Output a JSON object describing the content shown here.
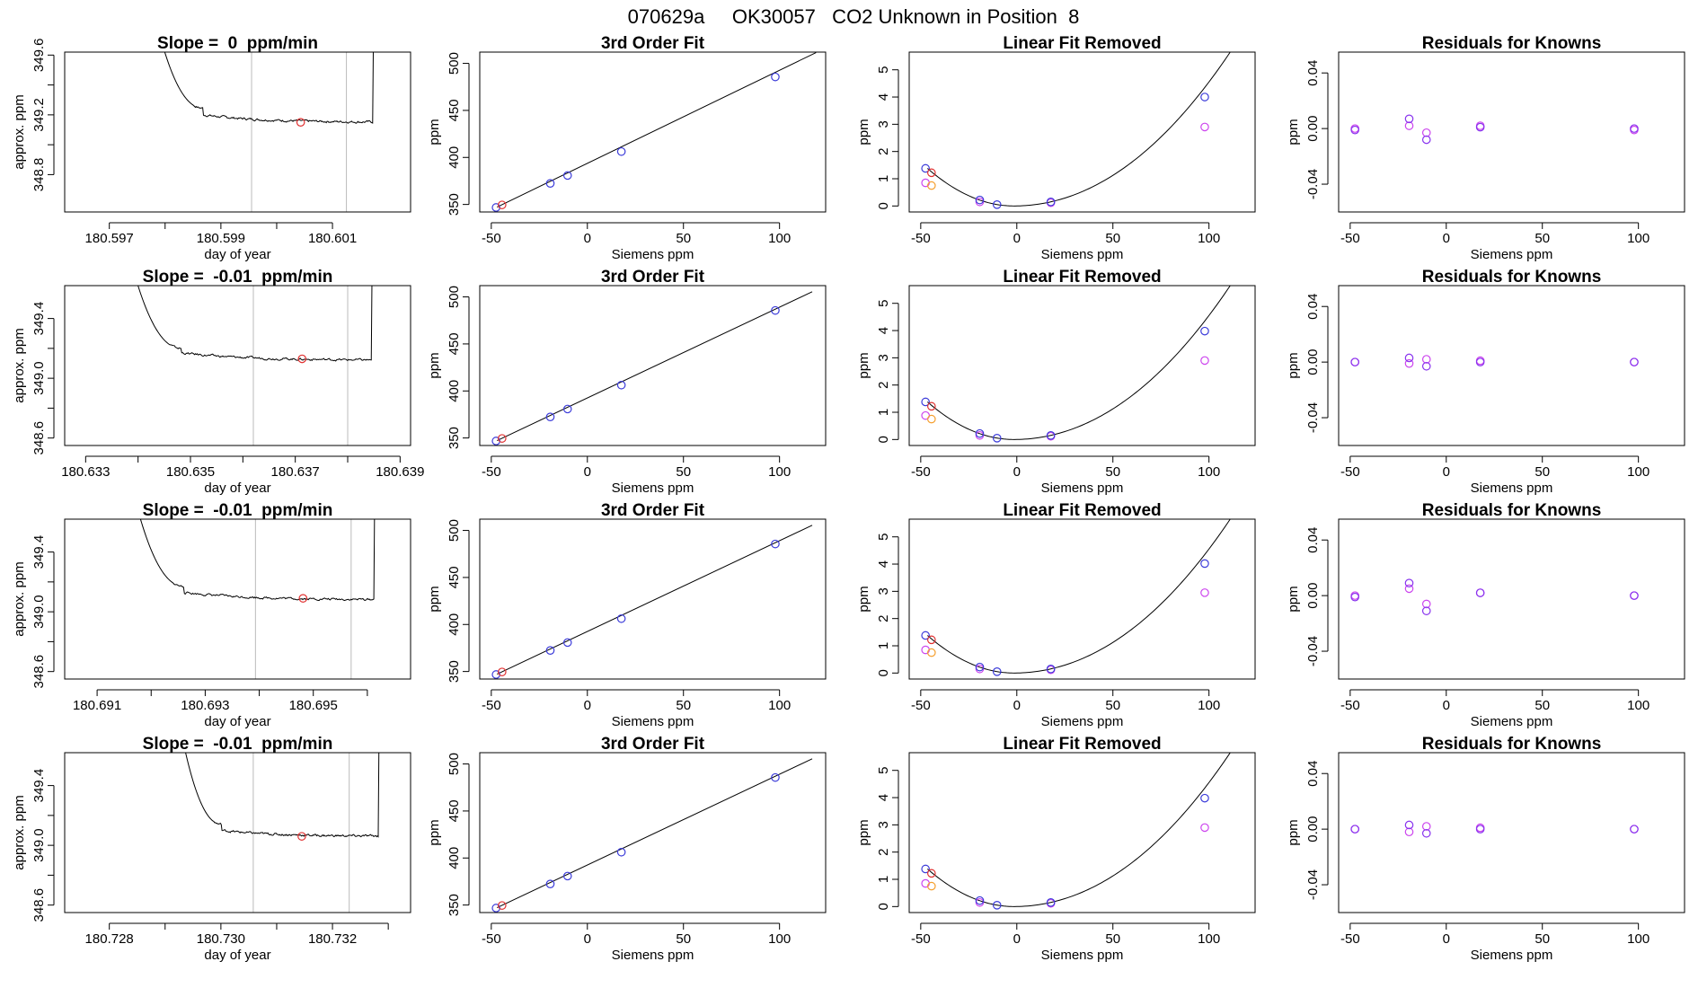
{
  "suptitle": "070629a     OK30057   CO2 Unknown in Position  8",
  "colors": {
    "known": "#3b3bd9",
    "unknown": "#e03030",
    "orange": "#f5a030",
    "magenta": "#cc44ee",
    "purple": "#8833ee",
    "vline": "#bbbbbb",
    "line": "#000000"
  },
  "chart_data": [
    {
      "type": "line",
      "panel": "trace",
      "row": 1,
      "title": "Slope =  0  ppm/min",
      "xlabel": "day of year",
      "ylabel": "approx. ppm",
      "xlim": [
        180.5962,
        180.6024
      ],
      "ylim": [
        348.55,
        349.62
      ],
      "xticks": [
        180.597,
        180.599,
        180.601
      ],
      "xtick_labels": [
        "180.597",
        "180.599",
        "180.601"
      ],
      "xticks_minor": [
        180.598,
        180.6
      ],
      "yticks": [
        348.8,
        349.2,
        349.6
      ],
      "ytick_labels": [
        "348.8",
        "349.2",
        "349.6"
      ],
      "yticks_minor": [
        349.0,
        349.4
      ],
      "vlines": [
        180.59955,
        180.60125
      ],
      "marker": [
        180.60043,
        349.15
      ],
      "trace": {
        "x0": 180.59793,
        "x1": 180.60172,
        "level": 349.15,
        "start": 349.7,
        "drop": 349.245,
        "plateau": 349.2
      }
    },
    {
      "type": "line",
      "panel": "trace",
      "row": 2,
      "title": "Slope =  -0.01  ppm/min",
      "xlabel": "day of year",
      "ylabel": "approx. ppm",
      "xlim": [
        180.6326,
        180.6392
      ],
      "ylim": [
        348.55,
        349.62
      ],
      "xticks": [
        180.633,
        180.635,
        180.637,
        180.639
      ],
      "xtick_labels": [
        "180.633",
        "180.635",
        "180.637",
        "180.639"
      ],
      "xticks_minor": [
        180.634,
        180.636,
        180.638
      ],
      "yticks": [
        348.6,
        349.0,
        349.4
      ],
      "ytick_labels": [
        "348.6",
        "349.0",
        "349.4"
      ],
      "yticks_minor": [
        348.8,
        349.2
      ],
      "vlines": [
        180.6362,
        180.638
      ],
      "marker": [
        180.63713,
        349.13
      ],
      "trace": {
        "x0": 180.63393,
        "x1": 180.63845,
        "level": 349.12,
        "start": 349.7,
        "drop": 349.2,
        "plateau": 349.17
      }
    },
    {
      "type": "line",
      "panel": "trace",
      "row": 3,
      "title": "Slope =  -0.01  ppm/min",
      "xlabel": "day of year",
      "ylabel": "approx. ppm",
      "xlim": [
        180.6904,
        180.6968
      ],
      "ylim": [
        348.55,
        349.62
      ],
      "xticks": [
        180.691,
        180.693,
        180.695
      ],
      "xtick_labels": [
        "180.691",
        "180.693",
        "180.695"
      ],
      "xticks_minor": [
        180.692,
        180.694,
        180.696
      ],
      "yticks": [
        348.6,
        349.0,
        349.4
      ],
      "ytick_labels": [
        "348.6",
        "349.0",
        "349.4"
      ],
      "yticks_minor": [
        348.8,
        349.2
      ],
      "vlines": [
        180.69393,
        180.6957
      ],
      "marker": [
        180.69481,
        349.09
      ],
      "trace": {
        "x0": 180.69174,
        "x1": 180.69612,
        "level": 349.08,
        "start": 349.7,
        "drop": 349.17,
        "plateau": 349.13
      }
    },
    {
      "type": "line",
      "panel": "trace",
      "row": 4,
      "title": "Slope =  -0.01  ppm/min",
      "xlabel": "day of year",
      "ylabel": "approx. ppm",
      "xlim": [
        180.7272,
        180.7334
      ],
      "ylim": [
        348.55,
        349.62
      ],
      "xticks": [
        180.728,
        180.73,
        180.732
      ],
      "xtick_labels": [
        "180.728",
        "180.730",
        "180.732"
      ],
      "xticks_minor": [
        180.729,
        180.731,
        180.733
      ],
      "yticks": [
        348.6,
        349.0,
        349.4
      ],
      "ytick_labels": [
        "348.6",
        "349.0",
        "349.4"
      ],
      "yticks_minor": [
        348.8,
        349.2
      ],
      "vlines": [
        180.73058,
        180.7323
      ],
      "marker": [
        180.73145,
        349.06
      ],
      "trace": {
        "x0": 180.72932,
        "x1": 180.73282,
        "level": 349.06,
        "start": 349.7,
        "drop": 349.14,
        "plateau": 349.1
      }
    },
    {
      "type": "scatter",
      "panel": "fit3",
      "row": 1,
      "title": "3rd Order Fit",
      "xlabel": "Siemens ppm",
      "ylabel": "ppm",
      "xlim": [
        -56,
        124
      ],
      "ylim": [
        342,
        512
      ],
      "xticks": [
        -50,
        0,
        50,
        100
      ],
      "xtick_labels": [
        "-50",
        "0",
        "50",
        "100"
      ],
      "yticks": [
        350,
        400,
        450,
        500
      ],
      "ytick_labels": [
        "350",
        "400",
        "450",
        "500"
      ],
      "knowns": [
        [
          -47.5,
          346.8
        ],
        [
          -19.3,
          372.4
        ],
        [
          -10.3,
          380.8
        ],
        [
          17.7,
          406.2
        ],
        [
          97.8,
          485.6
        ]
      ],
      "unknown": [
        -44.4,
        349.5
      ],
      "line": [
        [
          -47,
          347.2
        ],
        [
          119,
          511.5
        ]
      ]
    },
    {
      "type": "scatter",
      "panel": "fit3",
      "row": 2,
      "title": "3rd Order Fit",
      "xlabel": "Siemens ppm",
      "ylabel": "ppm",
      "xlim": [
        -56,
        124
      ],
      "ylim": [
        342,
        512
      ],
      "xticks": [
        -50,
        0,
        50,
        100
      ],
      "xtick_labels": [
        "-50",
        "0",
        "50",
        "100"
      ],
      "yticks": [
        350,
        400,
        450,
        500
      ],
      "ytick_labels": [
        "350",
        "400",
        "450",
        "500"
      ],
      "knowns": [
        [
          -47.5,
          346.8
        ],
        [
          -19.3,
          372.4
        ],
        [
          -10.3,
          380.8
        ],
        [
          17.7,
          406.2
        ],
        [
          97.8,
          485.6
        ]
      ],
      "unknown": [
        -44.4,
        349.5
      ],
      "line": [
        [
          -47,
          347.2
        ],
        [
          117,
          505.5
        ]
      ]
    },
    {
      "type": "scatter",
      "panel": "fit3",
      "row": 3,
      "title": "3rd Order Fit",
      "xlabel": "Siemens ppm",
      "ylabel": "ppm",
      "xlim": [
        -56,
        124
      ],
      "ylim": [
        342,
        512
      ],
      "xticks": [
        -50,
        0,
        50,
        100
      ],
      "xtick_labels": [
        "-50",
        "0",
        "50",
        "100"
      ],
      "yticks": [
        350,
        400,
        450,
        500
      ],
      "ytick_labels": [
        "350",
        "400",
        "450",
        "500"
      ],
      "knowns": [
        [
          -47.5,
          346.8
        ],
        [
          -19.3,
          372.4
        ],
        [
          -10.3,
          380.8
        ],
        [
          17.7,
          406.2
        ],
        [
          97.8,
          485.6
        ]
      ],
      "unknown": [
        -44.4,
        349.5
      ],
      "line": [
        [
          -47,
          347.2
        ],
        [
          117,
          505.5
        ]
      ]
    },
    {
      "type": "scatter",
      "panel": "fit3",
      "row": 4,
      "title": "3rd Order Fit",
      "xlabel": "Siemens ppm",
      "ylabel": "ppm",
      "xlim": [
        -56,
        124
      ],
      "ylim": [
        342,
        512
      ],
      "xticks": [
        -50,
        0,
        50,
        100
      ],
      "xtick_labels": [
        "-50",
        "0",
        "50",
        "100"
      ],
      "yticks": [
        350,
        400,
        450,
        500
      ],
      "ytick_labels": [
        "350",
        "400",
        "450",
        "500"
      ],
      "knowns": [
        [
          -47.5,
          346.8
        ],
        [
          -19.3,
          372.4
        ],
        [
          -10.3,
          380.8
        ],
        [
          17.7,
          406.2
        ],
        [
          97.8,
          485.6
        ]
      ],
      "unknown": [
        -44.4,
        349.5
      ],
      "line": [
        [
          -47,
          347.2
        ],
        [
          117,
          505.5
        ]
      ]
    },
    {
      "type": "scatter",
      "panel": "linrem",
      "row": 1,
      "title": "Linear Fit Removed",
      "xlabel": "Siemens ppm",
      "ylabel": "ppm",
      "xlim": [
        -56,
        124
      ],
      "ylim": [
        -0.22,
        5.65
      ],
      "xticks": [
        -50,
        0,
        50,
        100
      ],
      "xtick_labels": [
        "-50",
        "0",
        "50",
        "100"
      ],
      "yticks": [
        0,
        1,
        2,
        3,
        4,
        5
      ],
      "ytick_labels": [
        "0",
        "1",
        "2",
        "3",
        "4",
        "5"
      ],
      "knowns": [
        [
          -47.5,
          1.38
        ],
        [
          -19.3,
          0.22
        ],
        [
          -10.3,
          0.05
        ],
        [
          17.7,
          0.15
        ],
        [
          97.8,
          4.0
        ]
      ],
      "unknown": [
        -44.4,
        1.22
      ],
      "extra_orange": [
        [
          -44.4,
          0.75
        ]
      ],
      "extra_magenta": [
        [
          -47.5,
          0.85
        ],
        [
          -19.3,
          0.15
        ],
        [
          17.7,
          0.12
        ],
        [
          97.8,
          2.9
        ]
      ],
      "curve": {
        "x0": -46.5,
        "x1": 119,
        "a": 0.000405,
        "xmin": -1.5
      }
    },
    {
      "type": "scatter",
      "panel": "linrem",
      "row": 2,
      "title": "Linear Fit Removed",
      "xlabel": "Siemens ppm",
      "ylabel": "ppm",
      "xlim": [
        -56,
        124
      ],
      "ylim": [
        -0.22,
        5.65
      ],
      "xticks": [
        -50,
        0,
        50,
        100
      ],
      "xtick_labels": [
        "-50",
        "0",
        "50",
        "100"
      ],
      "yticks": [
        0,
        1,
        2,
        3,
        4,
        5
      ],
      "ytick_labels": [
        "0",
        "1",
        "2",
        "3",
        "4",
        "5"
      ],
      "knowns": [
        [
          -47.5,
          1.38
        ],
        [
          -19.3,
          0.22
        ],
        [
          -10.3,
          0.05
        ],
        [
          17.7,
          0.15
        ],
        [
          97.8,
          3.98
        ]
      ],
      "unknown": [
        -44.4,
        1.22
      ],
      "extra_orange": [
        [
          -44.4,
          0.75
        ]
      ],
      "extra_magenta": [
        [
          -47.5,
          0.88
        ],
        [
          -19.3,
          0.15
        ],
        [
          17.7,
          0.12
        ],
        [
          97.8,
          2.9
        ]
      ],
      "curve": {
        "x0": -46.5,
        "x1": 118,
        "a": 0.000405,
        "xmin": -1.5
      }
    },
    {
      "type": "scatter",
      "panel": "linrem",
      "row": 3,
      "title": "Linear Fit Removed",
      "xlabel": "Siemens ppm",
      "ylabel": "ppm",
      "xlim": [
        -56,
        124
      ],
      "ylim": [
        -0.22,
        5.65
      ],
      "xticks": [
        -50,
        0,
        50,
        100
      ],
      "xtick_labels": [
        "-50",
        "0",
        "50",
        "100"
      ],
      "yticks": [
        0,
        1,
        2,
        3,
        4,
        5
      ],
      "ytick_labels": [
        "0",
        "1",
        "2",
        "3",
        "4",
        "5"
      ],
      "knowns": [
        [
          -47.5,
          1.38
        ],
        [
          -19.3,
          0.22
        ],
        [
          -10.3,
          0.05
        ],
        [
          17.7,
          0.15
        ],
        [
          97.8,
          4.02
        ]
      ],
      "unknown": [
        -44.4,
        1.22
      ],
      "extra_orange": [
        [
          -44.4,
          0.75
        ]
      ],
      "extra_magenta": [
        [
          -47.5,
          0.85
        ],
        [
          -19.3,
          0.15
        ],
        [
          17.7,
          0.12
        ],
        [
          97.8,
          2.95
        ]
      ],
      "curve": {
        "x0": -46.5,
        "x1": 119,
        "a": 0.000405,
        "xmin": -1.5
      }
    },
    {
      "type": "scatter",
      "panel": "linrem",
      "row": 4,
      "title": "Linear Fit Removed",
      "xlabel": "Siemens ppm",
      "ylabel": "ppm",
      "xlim": [
        -56,
        124
      ],
      "ylim": [
        -0.22,
        5.65
      ],
      "xticks": [
        -50,
        0,
        50,
        100
      ],
      "xtick_labels": [
        "-50",
        "0",
        "50",
        "100"
      ],
      "yticks": [
        0,
        1,
        2,
        3,
        4,
        5
      ],
      "ytick_labels": [
        "0",
        "1",
        "2",
        "3",
        "4",
        "5"
      ],
      "knowns": [
        [
          -47.5,
          1.38
        ],
        [
          -19.3,
          0.22
        ],
        [
          -10.3,
          0.05
        ],
        [
          17.7,
          0.15
        ],
        [
          97.8,
          3.98
        ]
      ],
      "unknown": [
        -44.4,
        1.22
      ],
      "extra_orange": [
        [
          -44.4,
          0.75
        ]
      ],
      "extra_magenta": [
        [
          -47.5,
          0.85
        ],
        [
          -19.3,
          0.15
        ],
        [
          17.7,
          0.12
        ],
        [
          97.8,
          2.9
        ]
      ],
      "curve": {
        "x0": -46.5,
        "x1": 118,
        "a": 0.000405,
        "xmin": -1.5
      }
    },
    {
      "type": "scatter",
      "panel": "resid",
      "row": 1,
      "title": "Residuals for Knowns",
      "xlabel": "Siemens ppm",
      "ylabel": "ppm",
      "xlim": [
        -56,
        124
      ],
      "ylim": [
        -0.06,
        0.055
      ],
      "xticks": [
        -50,
        0,
        50,
        100
      ],
      "xtick_labels": [
        "-50",
        "0",
        "50",
        "100"
      ],
      "yticks": [
        -0.04,
        0.0,
        0.04
      ],
      "ytick_labels": [
        "-0.04",
        "0.00",
        "0.04"
      ],
      "blue": [
        [
          -47.5,
          -0.001
        ],
        [
          -19.3,
          0.007
        ],
        [
          -10.3,
          -0.008
        ],
        [
          17.7,
          0.001
        ],
        [
          97.8,
          0.0
        ]
      ],
      "magenta": [
        [
          -47.5,
          0.0
        ],
        [
          -19.3,
          0.002
        ],
        [
          -10.3,
          -0.003
        ],
        [
          17.7,
          0.002
        ],
        [
          97.8,
          -0.001
        ]
      ]
    },
    {
      "type": "scatter",
      "panel": "resid",
      "row": 2,
      "title": "Residuals for Knowns",
      "xlabel": "Siemens ppm",
      "ylabel": "ppm",
      "xlim": [
        -56,
        124
      ],
      "ylim": [
        -0.06,
        0.055
      ],
      "xticks": [
        -50,
        0,
        50,
        100
      ],
      "xtick_labels": [
        "-50",
        "0",
        "50",
        "100"
      ],
      "yticks": [
        -0.04,
        0.0,
        0.04
      ],
      "ytick_labels": [
        "-0.04",
        "0.00",
        "0.04"
      ],
      "blue": [
        [
          -47.5,
          0.0
        ],
        [
          -19.3,
          0.003
        ],
        [
          -10.3,
          -0.003
        ],
        [
          17.7,
          0.0
        ],
        [
          97.8,
          0.0
        ]
      ],
      "magenta": [
        [
          -47.5,
          0.0
        ],
        [
          -19.3,
          -0.001
        ],
        [
          -10.3,
          0.002
        ],
        [
          17.7,
          0.001
        ],
        [
          97.8,
          0.0
        ]
      ]
    },
    {
      "type": "scatter",
      "panel": "resid",
      "row": 3,
      "title": "Residuals for Knowns",
      "xlabel": "Siemens ppm",
      "ylabel": "ppm",
      "xlim": [
        -56,
        124
      ],
      "ylim": [
        -0.06,
        0.055
      ],
      "xticks": [
        -50,
        0,
        50,
        100
      ],
      "xtick_labels": [
        "-50",
        "0",
        "50",
        "100"
      ],
      "yticks": [
        -0.04,
        0.0,
        0.04
      ],
      "ytick_labels": [
        "-0.04",
        "0.00",
        "0.04"
      ],
      "blue": [
        [
          -47.5,
          -0.001
        ],
        [
          -19.3,
          0.009
        ],
        [
          -10.3,
          -0.011
        ],
        [
          17.7,
          0.002
        ],
        [
          97.8,
          0.0
        ]
      ],
      "magenta": [
        [
          -47.5,
          0.0
        ],
        [
          -19.3,
          0.005
        ],
        [
          -10.3,
          -0.006
        ],
        [
          17.7,
          0.002
        ],
        [
          97.8,
          0.0
        ]
      ]
    },
    {
      "type": "scatter",
      "panel": "resid",
      "row": 4,
      "title": "Residuals for Knowns",
      "xlabel": "Siemens ppm",
      "ylabel": "ppm",
      "xlim": [
        -56,
        124
      ],
      "ylim": [
        -0.06,
        0.055
      ],
      "xticks": [
        -50,
        0,
        50,
        100
      ],
      "xtick_labels": [
        "-50",
        "0",
        "50",
        "100"
      ],
      "yticks": [
        -0.04,
        0.0,
        0.04
      ],
      "ytick_labels": [
        "-0.04",
        "0.00",
        "0.04"
      ],
      "blue": [
        [
          -47.5,
          0.0
        ],
        [
          -19.3,
          0.003
        ],
        [
          -10.3,
          -0.003
        ],
        [
          17.7,
          0.0
        ],
        [
          97.8,
          0.0
        ]
      ],
      "magenta": [
        [
          -47.5,
          0.0
        ],
        [
          -19.3,
          -0.002
        ],
        [
          -10.3,
          0.002
        ],
        [
          17.7,
          0.001
        ],
        [
          97.8,
          0.0
        ]
      ]
    }
  ]
}
